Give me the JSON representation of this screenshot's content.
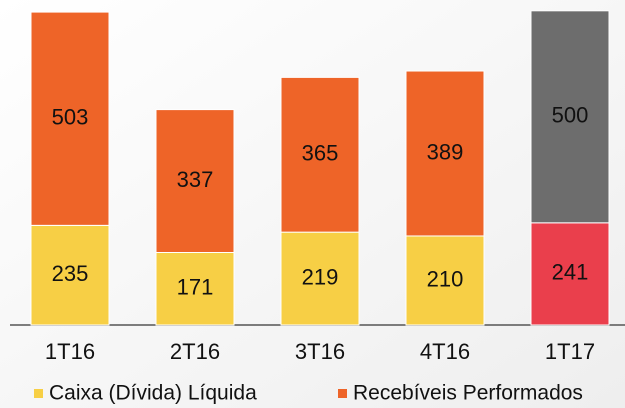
{
  "chart_data": {
    "type": "stacked_bar",
    "categories": [
      "1T16",
      "2T16",
      "3T16",
      "4T16",
      "1T17"
    ],
    "series": [
      {
        "name": "Caixa (Dívida) Líquida",
        "color": "#f7cf45",
        "colors": [
          "#f7cf45",
          "#f7cf45",
          "#f7cf45",
          "#f7cf45",
          "#ea3f4c"
        ],
        "values": [
          235,
          171,
          219,
          210,
          241
        ]
      },
      {
        "name": "Recebíveis Performados",
        "color": "#ee6428",
        "colors": [
          "#ee6428",
          "#ee6428",
          "#ee6428",
          "#ee6428",
          "#6d6d6d"
        ],
        "values": [
          503,
          337,
          365,
          389,
          500
        ]
      }
    ]
  }
}
